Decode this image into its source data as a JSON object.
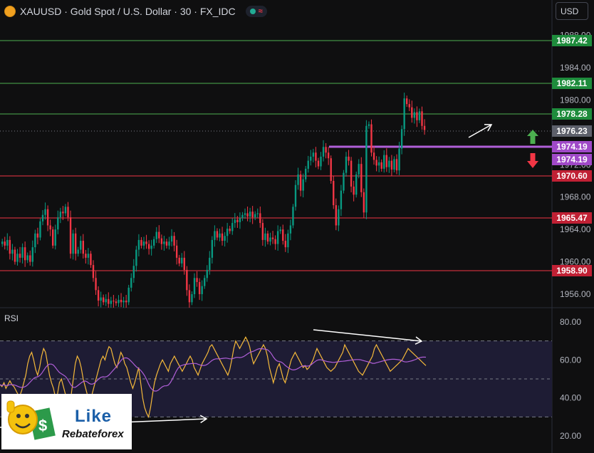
{
  "header": {
    "title": "XAUUSD · Gold Spot / U.S. Dollar · 30 · FX_IDC",
    "currency": "USD",
    "status_icon": "market-open-dot",
    "wave_icon": "≈"
  },
  "colors": {
    "background": "#0f0f10",
    "bull": "#089981",
    "bear": "#f23645",
    "support": "#f23645",
    "resistance": "#4caf50",
    "purple": "#b05fd8",
    "rsi_line": "#f5b93a",
    "rsi_ma": "#b05fd8",
    "rsi_band": "#1e1c34"
  },
  "price_axis": {
    "ticks": [
      "1988.00",
      "1984.00",
      "1980.00",
      "1976.00",
      "1972.00",
      "1968.00",
      "1964.00",
      "1960.00",
      "1956.00"
    ]
  },
  "levels": [
    {
      "label": "1987.42",
      "kind": "green"
    },
    {
      "label": "1982.11",
      "kind": "green"
    },
    {
      "label": "1978.28",
      "kind": "green"
    },
    {
      "label": "1976.23",
      "kind": "current"
    },
    {
      "label": "1974.19",
      "kind": "purple"
    },
    {
      "label": "1974.19",
      "kind": "purple"
    },
    {
      "label": "1970.60",
      "kind": "red"
    },
    {
      "label": "1965.47",
      "kind": "red"
    },
    {
      "label": "1958.90",
      "kind": "red"
    }
  ],
  "rsi": {
    "label": "RSI",
    "ticks": [
      "80.00",
      "60.00",
      "40.00",
      "20.00"
    ]
  },
  "logo": {
    "like": "Like",
    "rebate": "Rebateforex"
  },
  "chart_data": {
    "type": "candlestick",
    "symbol": "XAUUSD",
    "timeframe": "30",
    "ylim": [
      1954,
      1990
    ],
    "closes": [
      1962.5,
      1962,
      1962.7,
      1961,
      1961.5,
      1960,
      1961,
      1960.5,
      1961.8,
      1960.2,
      1960.8,
      1960,
      1961.8,
      1963.5,
      1963,
      1965,
      1965.8,
      1966.5,
      1964.5,
      1964,
      1962,
      1964,
      1965.5,
      1966.2,
      1966,
      1966.8,
      1965.5,
      1961,
      1963.5,
      1961,
      1961.5,
      1962.6,
      1961,
      1960.5,
      1961,
      1959.6,
      1958,
      1956.5,
      1955.2,
      1955.6,
      1955,
      1955.4,
      1954.8,
      1955.2,
      1955.1,
      1954.9,
      1955.3,
      1955,
      1955.2,
      1955,
      1956.8,
      1958,
      1959.5,
      1961.5,
      1962.7,
      1962,
      1962.5,
      1962.2,
      1961.6,
      1962,
      1962.8,
      1963.7,
      1962.9,
      1962.2,
      1962.5,
      1962,
      1962.5,
      1963.2,
      1962,
      1960.5,
      1959.8,
      1960.5,
      1959,
      1956.5,
      1955,
      1956,
      1958,
      1957.5,
      1956,
      1957,
      1958,
      1959,
      1960.5,
      1962.7,
      1963.8,
      1963,
      1963.5,
      1962.6,
      1963.2,
      1964.1,
      1963.8,
      1964.8,
      1965.2,
      1964.9,
      1965.4,
      1965.8,
      1966,
      1965.6,
      1966.2,
      1965.5,
      1965.9,
      1966,
      1964.8,
      1962.7,
      1963.5,
      1962.5,
      1963,
      1962.8,
      1962.2,
      1963.8,
      1964,
      1962.6,
      1961.8,
      1963.5,
      1964.5,
      1966.8,
      1969.5,
      1970.8,
      1968.8,
      1970.2,
      1971.5,
      1972.5,
      1973,
      1973.5,
      1972.5,
      1971.8,
      1973,
      1974.2,
      1973.5,
      1972.8,
      1970,
      1967,
      1964.5,
      1966.5,
      1968.8,
      1971,
      1973,
      1972.5,
      1969.3,
      1968.3,
      1970.8,
      1972.1,
      1968.6,
      1966.1,
      1976.8,
      1977,
      1973.5,
      1972.6,
      1971.9,
      1972.3,
      1971.5,
      1973.2,
      1971.7,
      1972.5,
      1971.4,
      1972.7,
      1971.3,
      1974,
      1976.4,
      1980.2,
      1979.5,
      1979.1,
      1977.8,
      1978.5,
      1977.5,
      1978.6,
      1976.8,
      1976.3
    ],
    "rsi_ylim": [
      20,
      80
    ],
    "rsi_bands": [
      70,
      50,
      30
    ],
    "rsi_values": [
      47,
      46,
      48,
      45,
      47,
      49,
      47,
      46,
      44,
      42,
      41,
      44,
      48,
      52,
      58,
      62,
      64,
      60,
      55,
      52,
      56,
      62,
      66,
      64,
      58,
      52,
      48,
      45,
      40,
      42,
      48,
      50,
      46,
      42,
      38,
      37,
      42,
      50,
      58,
      62,
      60,
      56,
      50,
      46,
      42,
      38,
      40,
      44,
      48,
      52,
      56,
      60,
      62,
      60,
      64,
      67,
      66,
      62,
      58,
      56,
      60,
      64,
      62,
      58,
      56,
      52,
      48,
      45,
      48,
      52,
      56,
      48,
      40,
      35,
      32,
      30,
      35,
      42,
      48,
      52,
      55,
      58,
      60,
      58,
      56,
      54,
      58,
      60,
      62,
      60,
      58,
      56,
      54,
      56,
      58,
      60,
      62,
      60,
      56,
      54,
      52,
      55,
      58,
      60,
      62,
      64,
      67,
      68,
      66,
      64,
      62,
      60,
      58,
      56,
      54,
      52,
      55,
      60,
      66,
      70,
      68,
      66,
      68,
      70,
      72,
      70,
      67,
      62,
      58,
      60,
      62,
      64,
      66,
      68,
      66,
      62,
      56,
      52,
      48,
      52,
      56,
      58,
      54,
      50,
      48,
      52,
      56,
      60,
      62,
      64,
      62,
      60,
      58,
      56,
      57,
      55,
      56,
      58,
      60,
      63,
      66,
      64,
      62,
      60,
      58,
      56,
      55,
      54,
      55,
      56,
      58,
      60,
      62,
      64,
      68,
      66,
      64,
      62,
      60,
      58,
      56,
      54,
      53,
      52,
      54,
      56,
      58,
      60,
      62,
      66,
      68,
      66,
      64,
      62,
      60,
      58,
      56,
      54,
      55,
      56,
      57,
      58,
      59,
      60,
      62,
      64,
      66,
      65,
      64,
      63,
      62,
      61,
      60,
      59,
      58,
      57
    ]
  }
}
